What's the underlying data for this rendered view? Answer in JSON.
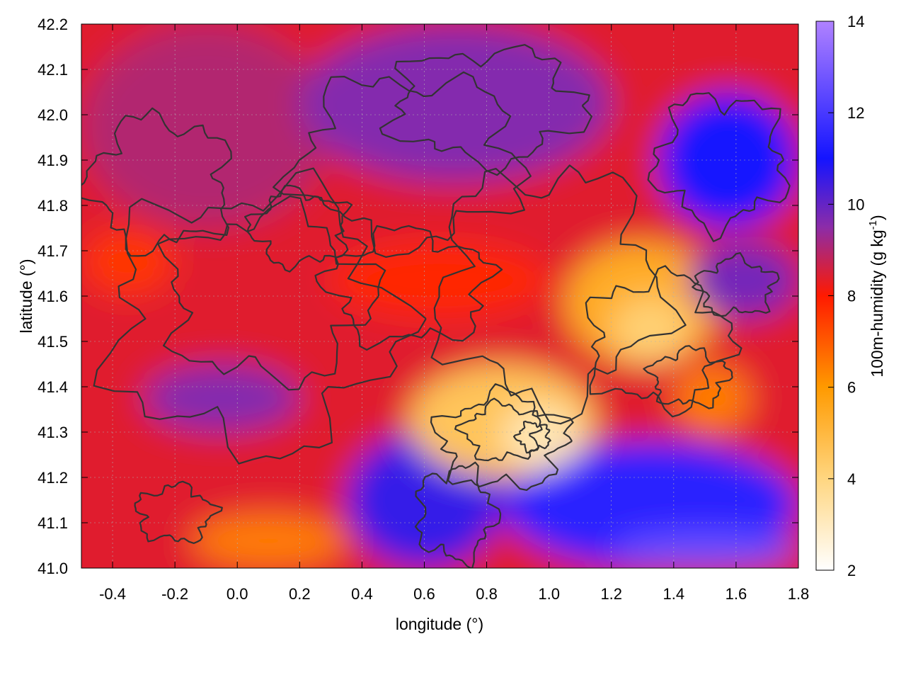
{
  "chart_data": {
    "type": "heatmap",
    "title": "",
    "xlabel": "longitude (°)",
    "ylabel": "latitude (°)",
    "xlim": [
      -0.5,
      1.8
    ],
    "ylim": [
      41.0,
      42.2
    ],
    "x_ticks": [
      -0.4,
      -0.2,
      0.0,
      0.2,
      0.4,
      0.6,
      0.8,
      1.0,
      1.2,
      1.4,
      1.6,
      1.8
    ],
    "x_tick_labels": [
      "-0.4",
      "-0.2",
      "0.0",
      "0.2",
      "0.4",
      "0.6",
      "0.8",
      "1.0",
      "1.2",
      "1.4",
      "1.6",
      "1.8"
    ],
    "y_ticks": [
      41.0,
      41.1,
      41.2,
      41.3,
      41.4,
      41.5,
      41.6,
      41.7,
      41.8,
      41.9,
      42.0,
      42.1,
      42.2
    ],
    "y_tick_labels": [
      "41.0",
      "41.1",
      "41.2",
      "41.3",
      "41.4",
      "41.5",
      "41.6",
      "41.7",
      "41.8",
      "41.9",
      "42.0",
      "42.1",
      "42.2"
    ],
    "colorbar": {
      "label": "100m-humidity (g kg",
      "label_superscript": "-1",
      "label_suffix": ")",
      "range": [
        2,
        14
      ],
      "ticks": [
        2,
        4,
        6,
        8,
        10,
        12,
        14
      ],
      "tick_labels": [
        "2",
        "4",
        "6",
        "8",
        "10",
        "12",
        "14"
      ],
      "colormap": [
        {
          "value": 2,
          "color": "#ffffff"
        },
        {
          "value": 4,
          "color": "#ffd680"
        },
        {
          "value": 6,
          "color": "#ff9a00"
        },
        {
          "value": 8,
          "color": "#ff1a00"
        },
        {
          "value": 9.5,
          "color": "#8c2ca8"
        },
        {
          "value": 11,
          "color": "#1414ff"
        },
        {
          "value": 14,
          "color": "#b082ff"
        }
      ]
    },
    "grid": true,
    "contour_color": "#333333",
    "field_regions": [
      {
        "lon": [
          -0.5,
          1.8
        ],
        "lat": [
          41.0,
          42.2
        ],
        "value": 8.4
      },
      {
        "lon": [
          -0.5,
          0.3
        ],
        "lat": [
          41.75,
          42.2
        ],
        "value": 9.0
      },
      {
        "lon": [
          0.2,
          1.2
        ],
        "lat": [
          41.85,
          42.2
        ],
        "value": 9.6
      },
      {
        "lon": [
          1.35,
          1.8
        ],
        "lat": [
          41.75,
          42.05
        ],
        "value": 11.0
      },
      {
        "lon": [
          0.3,
          1.0
        ],
        "lat": [
          41.55,
          41.72
        ],
        "value": 7.8
      },
      {
        "lon": [
          -0.3,
          0.2
        ],
        "lat": [
          41.3,
          41.45
        ],
        "value": 9.6
      },
      {
        "lon": [
          0.35,
          0.85
        ],
        "lat": [
          41.0,
          41.3
        ],
        "value": 10.6
      },
      {
        "lon": [
          0.85,
          1.8
        ],
        "lat": [
          41.0,
          41.28
        ],
        "value": 11.4
      },
      {
        "lon": [
          1.2,
          1.8
        ],
        "lat": [
          41.0,
          41.08
        ],
        "value": 12.6
      },
      {
        "lon": [
          0.55,
          1.15
        ],
        "lat": [
          41.2,
          41.45
        ],
        "value": 4.6
      },
      {
        "lon": [
          0.85,
          1.1
        ],
        "lat": [
          41.22,
          41.36
        ],
        "value": 3.2
      },
      {
        "lon": [
          1.05,
          1.55
        ],
        "lat": [
          41.45,
          41.72
        ],
        "value": 5.4
      },
      {
        "lon": [
          1.2,
          1.45
        ],
        "lat": [
          41.45,
          41.6
        ],
        "value": 4.2
      },
      {
        "lon": [
          1.4,
          1.65
        ],
        "lat": [
          41.3,
          41.45
        ],
        "value": 6.5
      },
      {
        "lon": [
          -0.15,
          0.35
        ],
        "lat": [
          41.0,
          41.12
        ],
        "value": 6.5
      },
      {
        "lon": [
          1.45,
          1.8
        ],
        "lat": [
          41.55,
          41.72
        ],
        "value": 9.8
      },
      {
        "lon": [
          -0.5,
          -0.2
        ],
        "lat": [
          41.6,
          41.75
        ],
        "value": 7.6
      }
    ]
  }
}
